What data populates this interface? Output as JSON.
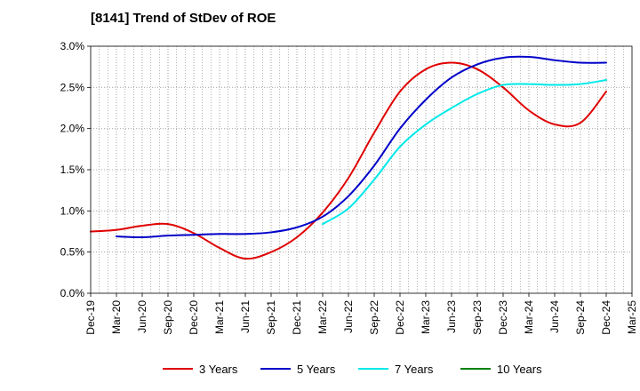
{
  "chart_data": {
    "type": "line",
    "title": "[8141]  Trend of StDev of ROE",
    "xlabel": "",
    "ylabel": "",
    "x_ticks": [
      "Dec-19",
      "Mar-20",
      "Jun-20",
      "Sep-20",
      "Dec-20",
      "Mar-21",
      "Jun-21",
      "Sep-21",
      "Dec-21",
      "Mar-22",
      "Jun-22",
      "Sep-22",
      "Dec-22",
      "Mar-23",
      "Jun-23",
      "Sep-23",
      "Dec-23",
      "Mar-24",
      "Jun-24",
      "Sep-24",
      "Dec-24",
      "Mar-25"
    ],
    "y_ticks": [
      "0.0%",
      "0.5%",
      "1.0%",
      "1.5%",
      "2.0%",
      "2.5%",
      "3.0%"
    ],
    "ylim": [
      0,
      3.0
    ],
    "grid": true,
    "legend_position": "bottom",
    "series": [
      {
        "name": "3 Years",
        "color": "#e00000",
        "points": [
          [
            "Dec-19",
            0.75
          ],
          [
            "Mar-20",
            0.77
          ],
          [
            "Jun-20",
            0.82
          ],
          [
            "Sep-20",
            0.84
          ],
          [
            "Dec-20",
            0.73
          ],
          [
            "Mar-21",
            0.55
          ],
          [
            "Jun-21",
            0.42
          ],
          [
            "Sep-21",
            0.5
          ],
          [
            "Dec-21",
            0.68
          ],
          [
            "Mar-22",
            0.98
          ],
          [
            "Jun-22",
            1.4
          ],
          [
            "Sep-22",
            1.95
          ],
          [
            "Dec-22",
            2.45
          ],
          [
            "Mar-23",
            2.72
          ],
          [
            "Jun-23",
            2.8
          ],
          [
            "Sep-23",
            2.72
          ],
          [
            "Dec-23",
            2.5
          ],
          [
            "Mar-24",
            2.22
          ],
          [
            "Jun-24",
            2.05
          ],
          [
            "Sep-24",
            2.07
          ],
          [
            "Dec-24",
            2.45
          ]
        ]
      },
      {
        "name": "5 Years",
        "color": "#0000c8",
        "points": [
          [
            "Mar-20",
            0.69
          ],
          [
            "Jun-20",
            0.68
          ],
          [
            "Sep-20",
            0.7
          ],
          [
            "Dec-20",
            0.71
          ],
          [
            "Mar-21",
            0.72
          ],
          [
            "Jun-21",
            0.72
          ],
          [
            "Sep-21",
            0.74
          ],
          [
            "Dec-21",
            0.8
          ],
          [
            "Mar-22",
            0.93
          ],
          [
            "Jun-22",
            1.18
          ],
          [
            "Sep-22",
            1.55
          ],
          [
            "Dec-22",
            2.0
          ],
          [
            "Mar-23",
            2.35
          ],
          [
            "Jun-23",
            2.62
          ],
          [
            "Sep-23",
            2.78
          ],
          [
            "Dec-23",
            2.86
          ],
          [
            "Mar-24",
            2.87
          ],
          [
            "Jun-24",
            2.83
          ],
          [
            "Sep-24",
            2.8
          ],
          [
            "Dec-24",
            2.8
          ]
        ]
      },
      {
        "name": "7 Years",
        "color": "#00e8e8",
        "points": [
          [
            "Mar-22",
            0.84
          ],
          [
            "Jun-22",
            1.03
          ],
          [
            "Sep-22",
            1.38
          ],
          [
            "Dec-22",
            1.78
          ],
          [
            "Mar-23",
            2.05
          ],
          [
            "Jun-23",
            2.25
          ],
          [
            "Sep-23",
            2.42
          ],
          [
            "Dec-23",
            2.53
          ],
          [
            "Mar-24",
            2.54
          ],
          [
            "Jun-24",
            2.53
          ],
          [
            "Sep-24",
            2.54
          ],
          [
            "Dec-24",
            2.59
          ]
        ]
      },
      {
        "name": "10 Years",
        "color": "#008000",
        "points": []
      }
    ]
  }
}
